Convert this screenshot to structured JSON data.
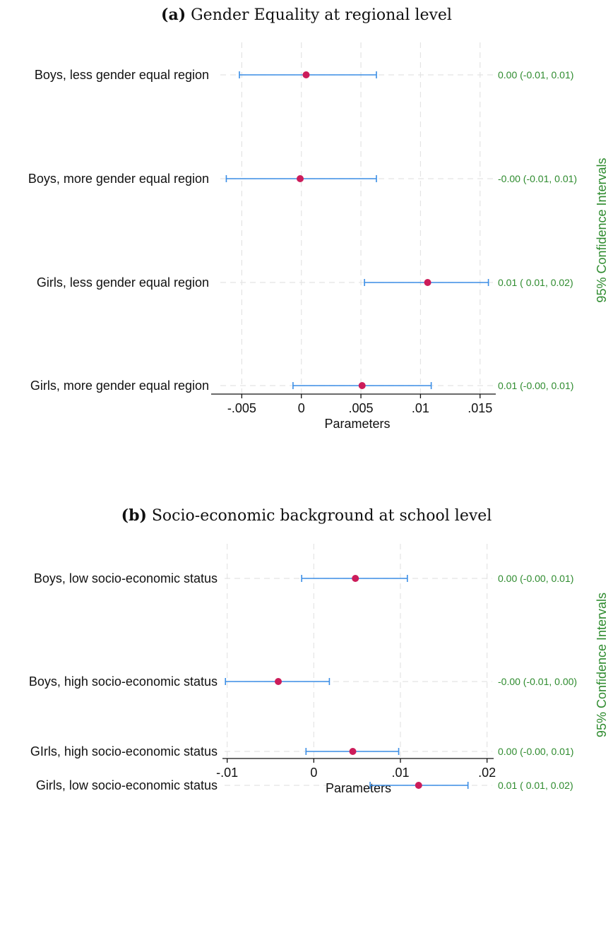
{
  "panels": [
    {
      "prefix": "(a)",
      "title": "Gender Equality at regional level"
    },
    {
      "prefix": "(b)",
      "title": "Socio-economic background at school level"
    }
  ],
  "colors": {
    "point": "#cc1c5a",
    "bar": "#3b8ee6",
    "ci_text": "#2e8b2e",
    "grid": "#e4e4e4"
  },
  "chart_data": [
    {
      "type": "scatter",
      "title": "Gender Equality at regional level",
      "xlabel": "Parameters",
      "ylabel_right": "95% Confidence Intervals",
      "xlim": [
        -0.0068,
        0.0162
      ],
      "xticks": [
        -0.005,
        0,
        0.005,
        0.01,
        0.015
      ],
      "xtick_labels": [
        "-.005",
        "0",
        ".005",
        ".01",
        ".015"
      ],
      "grid": true,
      "categories": [
        "Boys, less gender equal region",
        "Boys, more gender equal region",
        "Girls, less gender equal region",
        "Girls, more gender equal region"
      ],
      "estimates": [
        0.0004,
        -0.0001,
        0.0106,
        0.0051
      ],
      "ci_lower": [
        -0.0052,
        -0.0063,
        0.0053,
        -0.0007
      ],
      "ci_upper": [
        0.0063,
        0.0063,
        0.0157,
        0.0109
      ],
      "ci_labels": [
        "0.00 (-0.01, 0.01)",
        "-0.00 (-0.01, 0.01)",
        "0.01 ( 0.01, 0.02)",
        "0.01 (-0.00, 0.01)"
      ]
    },
    {
      "type": "scatter",
      "title": "Socio-economic background at school level",
      "xlabel": "Parameters",
      "ylabel_right": "95% Confidence Intervals",
      "xlim": [
        -0.0103,
        0.0206
      ],
      "xticks": [
        -0.01,
        0,
        0.01,
        0.02
      ],
      "xtick_labels": [
        "-.01",
        "0",
        ".01",
        ".02"
      ],
      "grid": true,
      "categories": [
        "Boys,  low socio-economic status",
        "Boys, high socio-economic status",
        "Girls, low socio-economic status",
        "GIrls, high socio-economic status"
      ],
      "estimates": [
        0.0048,
        -0.0041,
        0.0121,
        0.0045
      ],
      "ci_lower": [
        -0.0014,
        -0.0102,
        0.0065,
        -0.0009
      ],
      "ci_upper": [
        0.0108,
        0.0018,
        0.0178,
        0.0098
      ],
      "ci_labels": [
        "0.00 (-0.00, 0.01)",
        "-0.00 (-0.01, 0.00)",
        "0.01 ( 0.01, 0.02)",
        "0.00 (-0.00, 0.01)"
      ]
    }
  ]
}
